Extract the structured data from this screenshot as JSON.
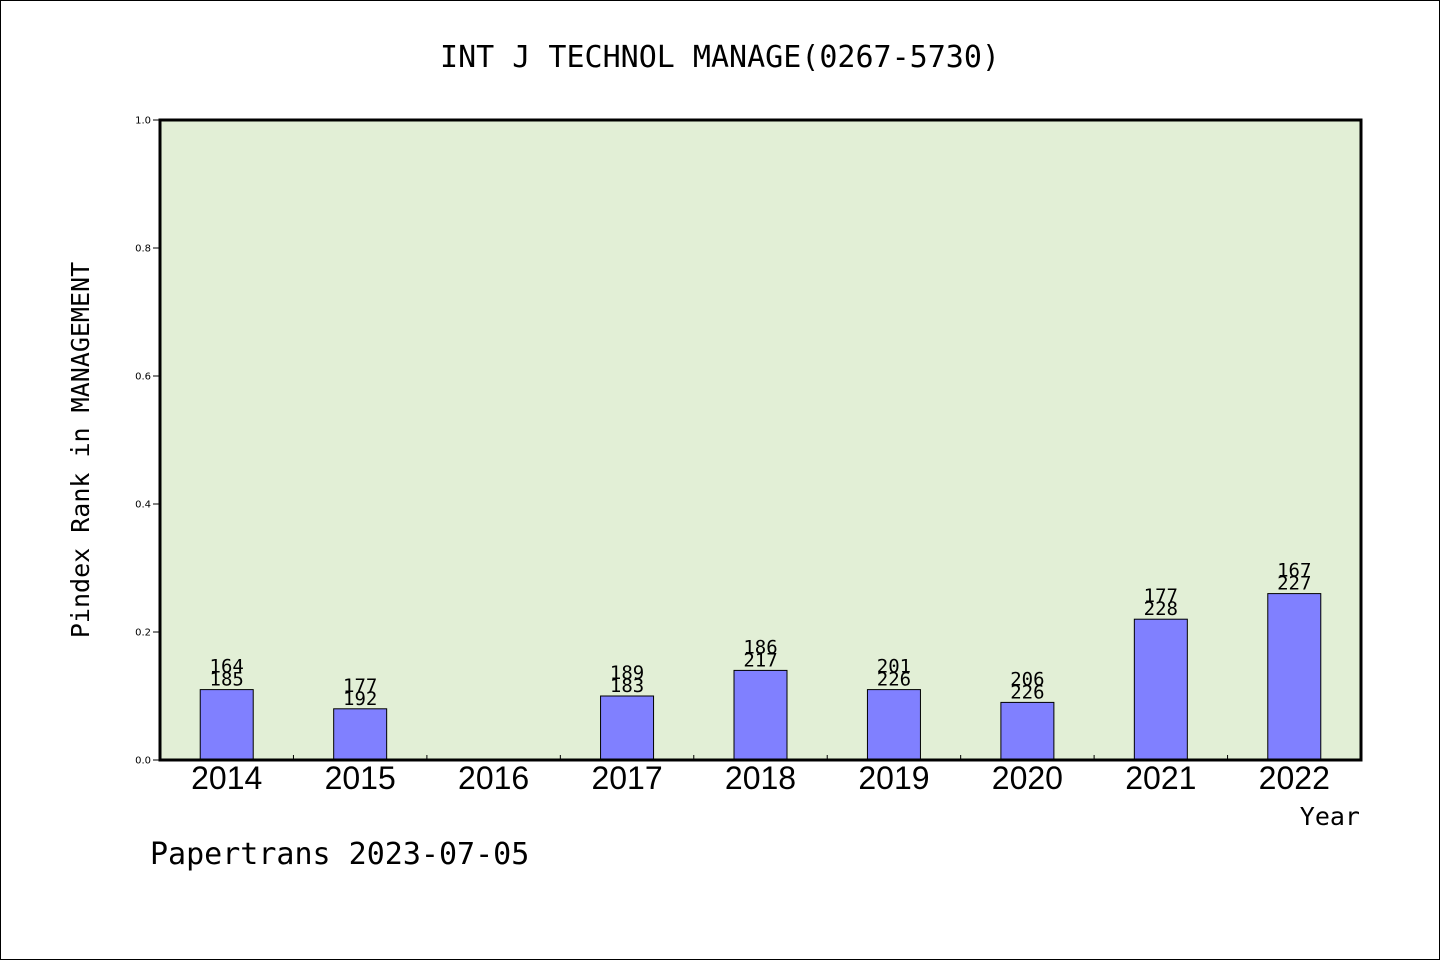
{
  "chart_data": {
    "type": "bar",
    "title": "INT J TECHNOL MANAGE(0267-5730)",
    "xlabel": "Year",
    "ylabel": "Pindex Rank in MANAGEMENT",
    "footer": "Papertrans 2023-07-05",
    "categories": [
      "2014",
      "2015",
      "2016",
      "2017",
      "2018",
      "2019",
      "2020",
      "2021",
      "2022"
    ],
    "values": [
      0.11,
      0.08,
      null,
      0.1,
      0.14,
      0.11,
      0.09,
      0.22,
      0.26
    ],
    "labels_top": [
      "164",
      "177",
      "",
      "189",
      "186",
      "201",
      "206",
      "177",
      "167"
    ],
    "labels_bottom": [
      "185",
      "192",
      "",
      "183",
      "217",
      "226",
      "226",
      "228",
      "227"
    ],
    "ylim": [
      0,
      1.0
    ],
    "yticks": [
      "0.0",
      "0.2",
      "0.4",
      "0.6",
      "0.8",
      "1.0"
    ],
    "grid": false,
    "colors": {
      "plot_bg": "#e2efd6",
      "bar": "#8080ff",
      "bar_edge": "#000000",
      "axis": "#000000",
      "text": "#000000"
    }
  }
}
